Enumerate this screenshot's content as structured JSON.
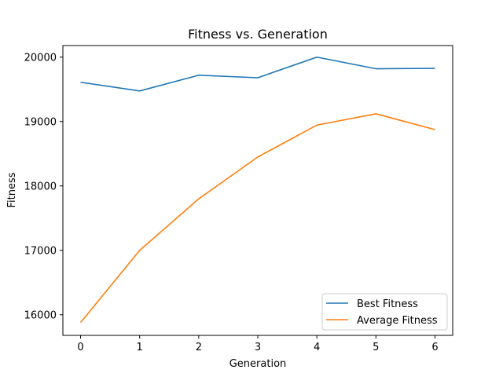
{
  "chart_data": {
    "type": "line",
    "title": "Fitness vs. Generation",
    "xlabel": "Generation",
    "ylabel": "Fitness",
    "x": [
      0,
      1,
      2,
      3,
      4,
      5,
      6
    ],
    "xlim": [
      -0.3,
      6.3
    ],
    "ylim": [
      15680,
      20180
    ],
    "xticks": [
      0,
      1,
      2,
      3,
      4,
      5,
      6
    ],
    "yticks": [
      16000,
      17000,
      18000,
      19000,
      20000
    ],
    "grid": false,
    "legend_position": "lower right",
    "series": [
      {
        "name": "Best Fitness",
        "color": "#1f77b4",
        "values": [
          19610,
          19475,
          19720,
          19680,
          20000,
          19820,
          19825
        ]
      },
      {
        "name": "Average Fitness",
        "color": "#ff7f0e",
        "values": [
          15880,
          17000,
          17800,
          18450,
          18945,
          19120,
          18875
        ]
      }
    ]
  }
}
